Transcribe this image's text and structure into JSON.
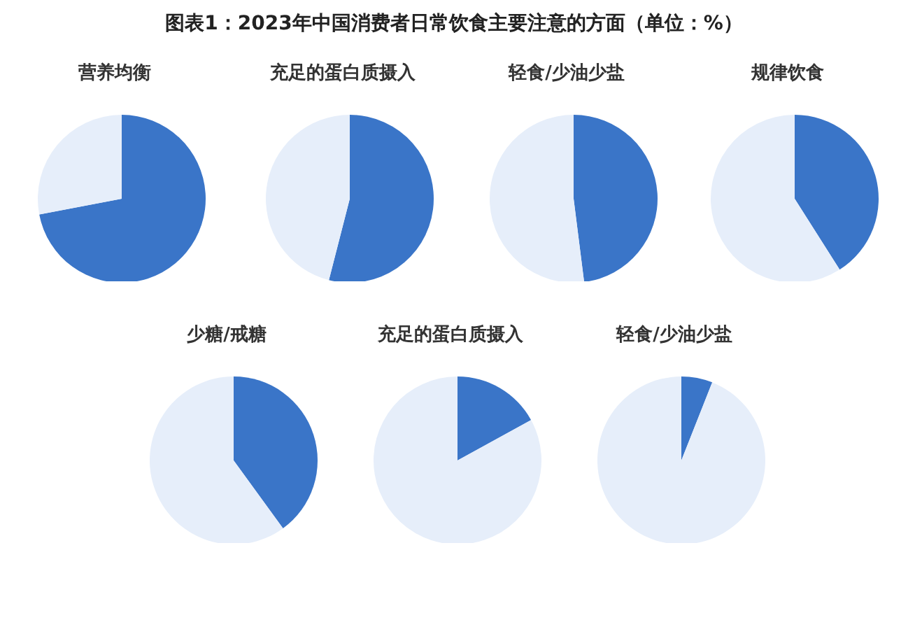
{
  "chart_data": [
    {
      "type": "other",
      "title": "图表1：2023年中国消费者日常饮食主要注意的方面（单位：%）"
    },
    {
      "type": "pie",
      "title": "营养均衡",
      "categories": [
        null,
        null
      ],
      "values": [
        72,
        28
      ],
      "colors": [
        "#3a75c8",
        "#e6eefa"
      ]
    },
    {
      "type": "pie",
      "title": "充足的蛋白质摄入",
      "categories": [
        null,
        null
      ],
      "values": [
        54,
        46
      ],
      "colors": [
        "#3a75c8",
        "#e6eefa"
      ]
    },
    {
      "type": "pie",
      "title": "轻食/少油少盐",
      "categories": [
        null,
        null
      ],
      "values": [
        48,
        52
      ],
      "colors": [
        "#3a75c8",
        "#e6eefa"
      ]
    },
    {
      "type": "pie",
      "title": "规律饮食",
      "categories": [
        null,
        null
      ],
      "values": [
        41,
        59
      ],
      "colors": [
        "#3a75c8",
        "#e6eefa"
      ]
    },
    {
      "type": "pie",
      "title": "少糖/戒糖",
      "categories": [
        null,
        null
      ],
      "values": [
        40,
        60
      ],
      "colors": [
        "#3a75c8",
        "#e6eefa"
      ]
    },
    {
      "type": "pie",
      "title": "充足的蛋白质摄入",
      "categories": [
        null,
        null
      ],
      "values": [
        17,
        83
      ],
      "colors": [
        "#3a75c8",
        "#e6eefa"
      ]
    },
    {
      "type": "pie",
      "title": "轻食/少油少盐",
      "categories": [
        null,
        null
      ],
      "values": [
        6,
        94
      ],
      "colors": [
        "#3a75c8",
        "#e6eefa"
      ]
    }
  ]
}
